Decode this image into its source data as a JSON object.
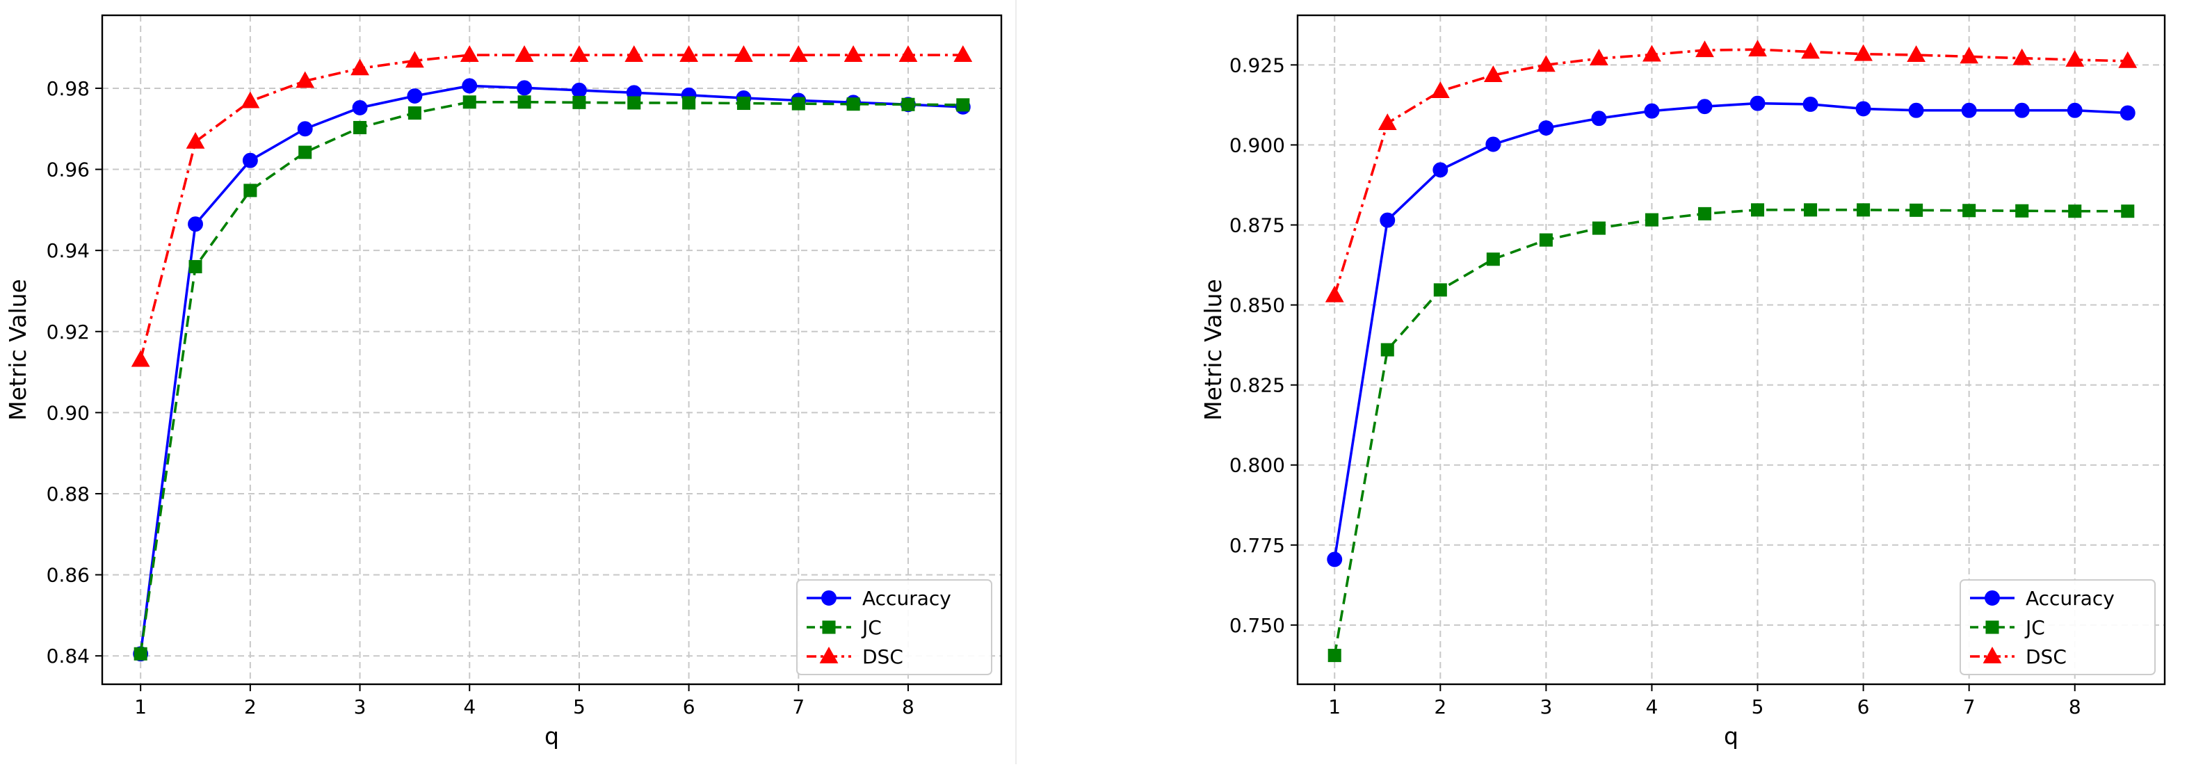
{
  "chart_data": [
    {
      "type": "line",
      "xlabel": "q",
      "ylabel": "Metric Value",
      "xlim": [
        0.65,
        8.85
      ],
      "ylim": [
        0.833,
        0.998
      ],
      "xticks": [
        1,
        2,
        3,
        4,
        5,
        6,
        7,
        8
      ],
      "yticks": [
        0.84,
        0.86,
        0.88,
        0.9,
        0.92,
        0.94,
        0.96,
        0.98
      ],
      "ytick_decimals": 2,
      "grid": true,
      "legend_position": "lower-right",
      "x": [
        1,
        1.5,
        2,
        2.5,
        3,
        3.5,
        4,
        4.5,
        5,
        5.5,
        6,
        6.5,
        7,
        7.5,
        8,
        8.5
      ],
      "series": [
        {
          "name": "Accuracy",
          "color": "#0000ff",
          "marker": "circle",
          "dash": "solid",
          "values": [
            0.8405,
            0.9465,
            0.9622,
            0.97,
            0.9752,
            0.9781,
            0.9806,
            0.9801,
            0.9795,
            0.9789,
            0.9783,
            0.9776,
            0.977,
            0.9765,
            0.976,
            0.9754
          ]
        },
        {
          "name": "JC",
          "color": "#008000",
          "marker": "square",
          "dash": "dashed",
          "values": [
            0.8405,
            0.936,
            0.9548,
            0.9642,
            0.9703,
            0.9739,
            0.9766,
            0.9766,
            0.9765,
            0.9764,
            0.9764,
            0.9763,
            0.9762,
            0.9761,
            0.976,
            0.9759
          ]
        },
        {
          "name": "DSC",
          "color": "#ff0000",
          "marker": "triangle",
          "dash": "dashdot",
          "values": [
            0.913,
            0.9668,
            0.9768,
            0.9818,
            0.9849,
            0.9868,
            0.9882,
            0.9882,
            0.9882,
            0.9882,
            0.9882,
            0.9882,
            0.9882,
            0.9882,
            0.9882,
            0.9882
          ]
        }
      ]
    },
    {
      "type": "line",
      "xlabel": "q",
      "ylabel": "Metric Value",
      "xlim": [
        0.65,
        8.85
      ],
      "ylim": [
        0.7315,
        0.9405
      ],
      "xticks": [
        1,
        2,
        3,
        4,
        5,
        6,
        7,
        8
      ],
      "yticks": [
        0.75,
        0.775,
        0.8,
        0.825,
        0.85,
        0.875,
        0.9,
        0.925
      ],
      "ytick_decimals": 3,
      "grid": true,
      "legend_position": "lower-right",
      "x": [
        1,
        1.5,
        2,
        2.5,
        3,
        3.5,
        4,
        4.5,
        5,
        5.5,
        6,
        6.5,
        7,
        7.5,
        8,
        8.5
      ],
      "series": [
        {
          "name": "Accuracy",
          "color": "#0000ff",
          "marker": "circle",
          "dash": "solid",
          "values": [
            0.7705,
            0.8765,
            0.8922,
            0.9002,
            0.9053,
            0.9083,
            0.9106,
            0.912,
            0.913,
            0.9127,
            0.9113,
            0.9108,
            0.9108,
            0.9108,
            0.9108,
            0.91
          ]
        },
        {
          "name": "JC",
          "color": "#008000",
          "marker": "square",
          "dash": "dashed",
          "values": [
            0.7405,
            0.836,
            0.8547,
            0.8643,
            0.8703,
            0.874,
            0.8766,
            0.8785,
            0.8797,
            0.8797,
            0.8797,
            0.8796,
            0.8795,
            0.8794,
            0.8793,
            0.8793
          ]
        },
        {
          "name": "DSC",
          "color": "#ff0000",
          "marker": "triangle",
          "dash": "dashdot",
          "values": [
            0.853,
            0.9068,
            0.9168,
            0.9218,
            0.925,
            0.927,
            0.9282,
            0.9296,
            0.9298,
            0.9291,
            0.9284,
            0.9281,
            0.9276,
            0.9271,
            0.9266,
            0.9262
          ]
        }
      ]
    }
  ]
}
